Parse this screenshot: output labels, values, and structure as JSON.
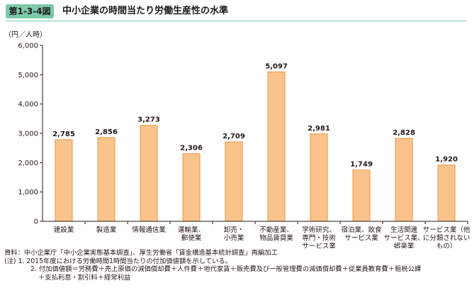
{
  "figure": {
    "number": "第1-3-4図",
    "title": "中小企業の時間当たり労働生産性の水準"
  },
  "chart_data": {
    "type": "bar",
    "ylabel": "（円／人時）",
    "ylim": [
      0,
      6000
    ],
    "yticks": [
      "0",
      "1,000",
      "2,000",
      "3,000",
      "4,000",
      "5,000",
      "6,000"
    ],
    "categories": [
      [
        "建設業"
      ],
      [
        "製造業"
      ],
      [
        "情報通信業"
      ],
      [
        "運輸業、",
        "郵便業"
      ],
      [
        "卸売・",
        "小売業"
      ],
      [
        "不動産業、",
        "物品賃貸業"
      ],
      [
        "学術研究、",
        "専門・技術",
        "サービス業"
      ],
      [
        "宿泊業、飲食",
        "サービス業"
      ],
      [
        "生活関連",
        "サービス業、",
        "娯楽業"
      ],
      [
        "サービス業（他",
        "に分類されない",
        "もの）"
      ]
    ],
    "values": [
      2785,
      2856,
      3273,
      2306,
      2709,
      5097,
      2981,
      1749,
      2828,
      1920
    ],
    "value_labels": [
      "2,785",
      "2,856",
      "3,273",
      "2,306",
      "2,709",
      "5,097",
      "2,981",
      "1,749",
      "2,828",
      "1,920"
    ],
    "bar_color": "#fbc38c",
    "bar_stroke": "#e9953f",
    "grid": false,
    "legend": "none"
  },
  "notes": {
    "source": "資料：中小企業庁「中小企業実態基本調査」、厚生労働省「賃金構造基本統計調査」再編加工",
    "note1": "(注) 1. 2015年度における労働時間1時間当たりの付加価値額を示している。",
    "note2": "2. 付加価値額＝労務費＋売上原価の減価償却費＋人件費＋地代家賃＋販売費及び一般管理費の減価償却費＋従業員教育費＋租税公課",
    "note2_cont": "＋支払利息・割引料＋経常利益"
  }
}
